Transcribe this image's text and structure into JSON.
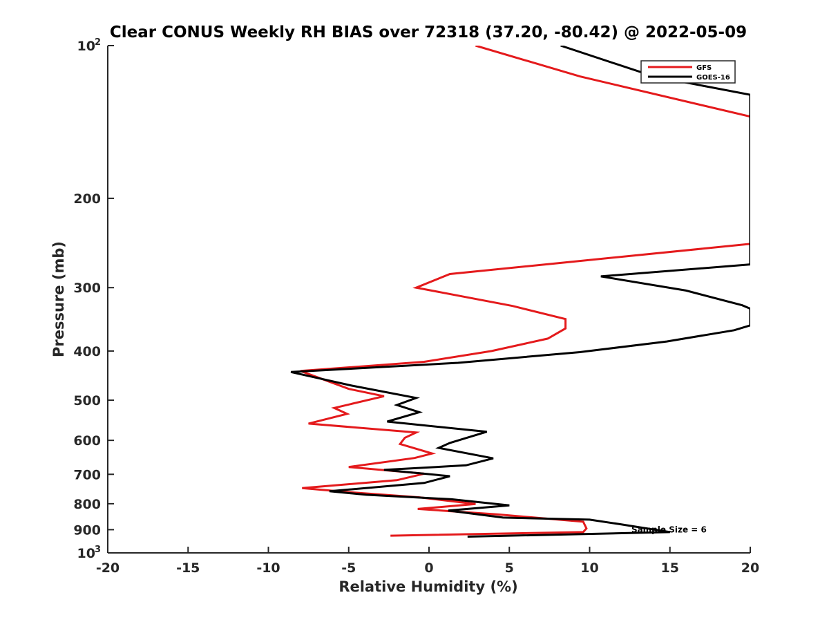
{
  "chart_data": {
    "type": "line",
    "title": "Clear CONUS Weekly RH BIAS over 72318 (37.20, -80.42) @ 2022-05-09",
    "xlabel": "Relative Humidity (%)",
    "ylabel": "Pressure (mb)",
    "xlim": [
      -20,
      20
    ],
    "ylim": [
      100,
      1000
    ],
    "yscale": "log",
    "y_reversed": true,
    "xticks": [
      -20,
      -15,
      -10,
      -5,
      0,
      5,
      10,
      15,
      20
    ],
    "xtick_labels": [
      "-20",
      "-15",
      "-10",
      "-5",
      "0",
      "5",
      "10",
      "15",
      "20"
    ],
    "yticks": [
      100,
      200,
      300,
      400,
      500,
      600,
      700,
      800,
      900,
      1000
    ],
    "ytick_labels": [
      {
        "base": "10",
        "sup": "2"
      },
      {
        "base": "200",
        "sup": ""
      },
      {
        "base": "300",
        "sup": ""
      },
      {
        "base": "400",
        "sup": ""
      },
      {
        "base": "500",
        "sup": ""
      },
      {
        "base": "600",
        "sup": ""
      },
      {
        "base": "700",
        "sup": ""
      },
      {
        "base": "800",
        "sup": ""
      },
      {
        "base": "900",
        "sup": ""
      },
      {
        "base": "10",
        "sup": "3"
      }
    ],
    "grid": false,
    "legend_position": "top-right",
    "series": [
      {
        "name": "GFS",
        "color": "#e41a1c",
        "points": [
          [
            2.9,
            100
          ],
          [
            9.4,
            115
          ],
          [
            20,
            138
          ],
          [
            20,
            246
          ],
          [
            1.3,
            282
          ],
          [
            -0.8,
            300
          ],
          [
            5.2,
            326
          ],
          [
            8.5,
            346
          ],
          [
            8.5,
            361
          ],
          [
            7.4,
            378
          ],
          [
            3.9,
            400
          ],
          [
            -0.3,
            420
          ],
          [
            -8.0,
            438
          ],
          [
            -5.0,
            475
          ],
          [
            -2.8,
            491
          ],
          [
            -5.9,
            518
          ],
          [
            -5.1,
            532
          ],
          [
            -7.5,
            556
          ],
          [
            -0.8,
            579
          ],
          [
            -1.5,
            593
          ],
          [
            -1.8,
            610
          ],
          [
            0.2,
            637
          ],
          [
            -0.9,
            650
          ],
          [
            -5.0,
            677
          ],
          [
            -0.3,
            698
          ],
          [
            -2.0,
            719
          ],
          [
            -7.9,
            745
          ],
          [
            -5.0,
            759
          ],
          [
            -0.6,
            777
          ],
          [
            2.9,
            801
          ],
          [
            -0.7,
            819
          ],
          [
            4.3,
            840
          ],
          [
            9.6,
            868
          ],
          [
            9.8,
            895
          ],
          [
            9.6,
            910
          ],
          [
            -2.4,
            925
          ]
        ]
      },
      {
        "name": "GOES-16",
        "color": "#000000",
        "points": [
          [
            8.2,
            100
          ],
          [
            14.0,
            115
          ],
          [
            20,
            125
          ],
          [
            20,
            270
          ],
          [
            10.7,
            285
          ],
          [
            16.0,
            304
          ],
          [
            19.5,
            325
          ],
          [
            20,
            330
          ],
          [
            20,
            356
          ],
          [
            19.0,
            364
          ],
          [
            14.8,
            383
          ],
          [
            9.4,
            402
          ],
          [
            1.8,
            422
          ],
          [
            -8.6,
            440
          ],
          [
            -4.8,
            468
          ],
          [
            -0.8,
            495
          ],
          [
            -2.0,
            511
          ],
          [
            -0.6,
            528
          ],
          [
            -2.6,
            551
          ],
          [
            3.6,
            577
          ],
          [
            1.3,
            607
          ],
          [
            0.6,
            621
          ],
          [
            4.0,
            651
          ],
          [
            2.3,
            672
          ],
          [
            -2.8,
            686
          ],
          [
            1.3,
            706
          ],
          [
            -0.3,
            728
          ],
          [
            -6.2,
            756
          ],
          [
            -3.9,
            768
          ],
          [
            1.4,
            784
          ],
          [
            5.0,
            806
          ],
          [
            1.2,
            825
          ],
          [
            4.6,
            852
          ],
          [
            10.0,
            860
          ],
          [
            11.9,
            878
          ],
          [
            15.0,
            910
          ],
          [
            2.4,
            929
          ]
        ]
      }
    ],
    "annotations": [
      {
        "text": "Sample Size = 6",
        "x": 12.6,
        "y": 900
      }
    ]
  }
}
